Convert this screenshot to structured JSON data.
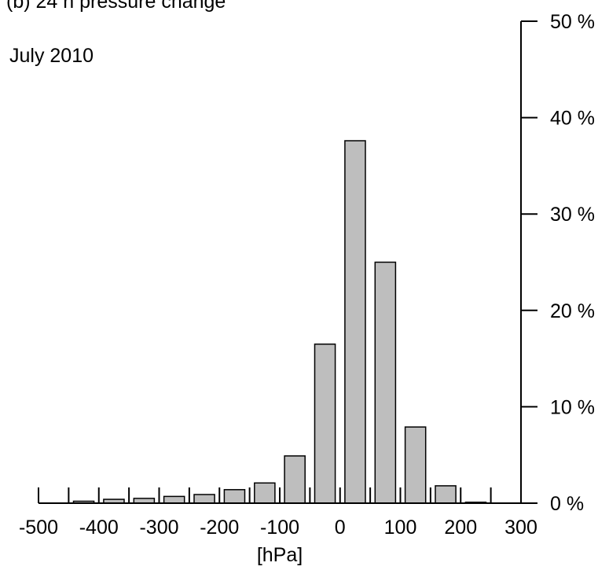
{
  "chart_data": {
    "type": "bar",
    "title": "(b) 24 h pressure change",
    "subtitle": "July 2010",
    "xlabel": "[hPa]",
    "ylabel": "",
    "x_ticks": [
      -500,
      -400,
      -300,
      -200,
      -100,
      0,
      100,
      200,
      300
    ],
    "xlim": [
      -500,
      300
    ],
    "y_ticks": [
      "0 %",
      "10 %",
      "20 %",
      "30 %",
      "40 %",
      "50 %"
    ],
    "ylim": [
      0,
      50
    ],
    "bin_width": 50,
    "bins": [
      {
        "center": -425,
        "value": 0.2
      },
      {
        "center": -375,
        "value": 0.4
      },
      {
        "center": -325,
        "value": 0.5
      },
      {
        "center": -275,
        "value": 0.7
      },
      {
        "center": -225,
        "value": 0.9
      },
      {
        "center": -175,
        "value": 1.4
      },
      {
        "center": -125,
        "value": 2.1
      },
      {
        "center": -75,
        "value": 4.9
      },
      {
        "center": -25,
        "value": 16.5
      },
      {
        "center": 25,
        "value": 37.6
      },
      {
        "center": 75,
        "value": 25.0
      },
      {
        "center": 125,
        "value": 7.9
      },
      {
        "center": 175,
        "value": 1.8
      },
      {
        "center": 225,
        "value": 0.1
      }
    ],
    "bar_color": "#bebebe",
    "grid": false,
    "legend": "none"
  }
}
